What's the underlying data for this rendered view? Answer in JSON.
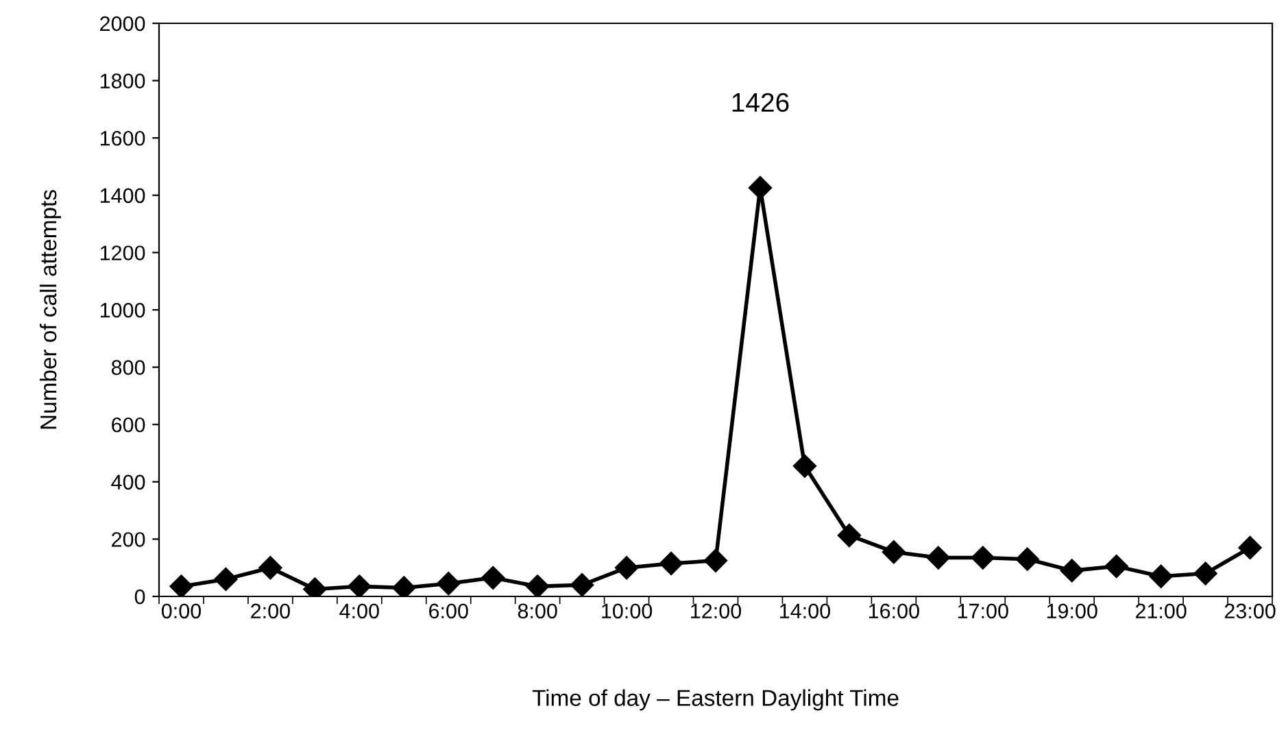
{
  "chart_data": {
    "type": "line",
    "xlabel": "Time of day – Eastern Daylight Time",
    "ylabel": "Number of call attempts",
    "categories": [
      "0:00",
      null,
      "2:00",
      null,
      "4:00",
      null,
      "6:00",
      null,
      "8:00",
      null,
      "10:00",
      null,
      "12:00",
      null,
      "14:00",
      null,
      "16:00",
      null,
      "17:00",
      null,
      "19:00",
      null,
      "21:00",
      null,
      "23:00"
    ],
    "series": [
      {
        "color": "#000000",
        "values": [
          35,
          60,
          100,
          25,
          35,
          30,
          45,
          65,
          35,
          40,
          100,
          115,
          125,
          1426,
          455,
          213,
          155,
          135,
          135,
          130,
          90,
          105,
          70,
          80,
          170
        ]
      }
    ],
    "ylim": [
      0,
      2000
    ],
    "yticks": [
      0,
      200,
      400,
      600,
      800,
      1000,
      1200,
      1400,
      1600,
      1800,
      2000
    ],
    "annotations": [
      {
        "text": "1426",
        "y": 1426
      }
    ],
    "grid": false,
    "legend": false,
    "marker": "diamond",
    "line_style": "solid"
  }
}
